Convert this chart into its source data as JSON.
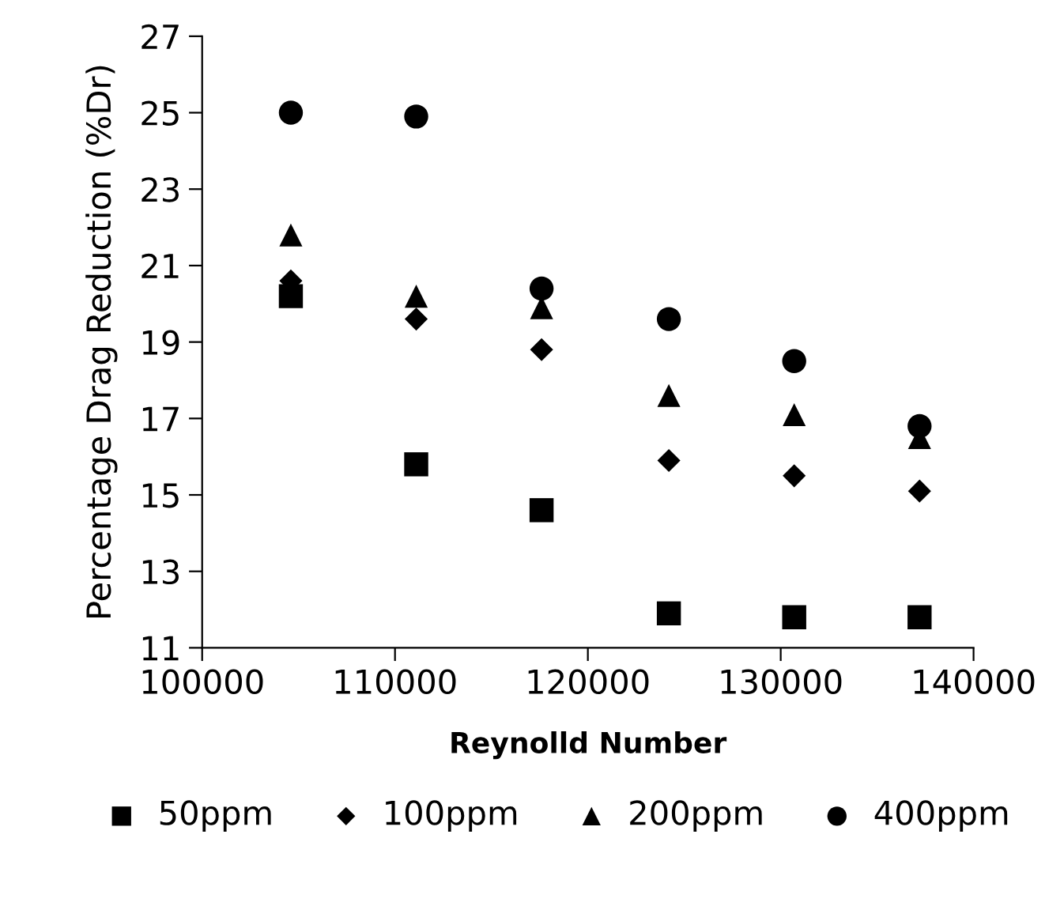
{
  "chart_data": {
    "type": "scatter",
    "xlabel": "Reynolld Number",
    "ylabel": "Percentage Drag Reduction (%Dr)",
    "x": [
      104600,
      111100,
      117600,
      124200,
      130700,
      137200
    ],
    "series": [
      {
        "name": "50ppm",
        "color": "#000000",
        "marker": "square",
        "values": [
          20.2,
          15.8,
          14.6,
          11.9,
          11.8,
          11.8
        ]
      },
      {
        "name": "100ppm",
        "color": "#000000",
        "marker": "diamond",
        "values": [
          20.6,
          19.6,
          18.8,
          15.9,
          15.5,
          15.1
        ]
      },
      {
        "name": "200ppm",
        "color": "#000000",
        "marker": "triangle",
        "values": [
          21.8,
          20.2,
          19.9,
          17.6,
          17.1,
          16.5
        ]
      },
      {
        "name": "400ppm",
        "color": "#000000",
        "marker": "circle",
        "values": [
          25.0,
          24.9,
          20.4,
          19.6,
          18.5,
          16.8
        ]
      }
    ],
    "xlim": [
      100000,
      140000
    ],
    "xticks": [
      100000,
      110000,
      120000,
      130000,
      140000
    ],
    "ylim": [
      11,
      27
    ],
    "yticks": [
      11,
      13,
      15,
      17,
      19,
      21,
      23,
      25,
      27
    ],
    "grid": false,
    "legend": "bottom"
  }
}
